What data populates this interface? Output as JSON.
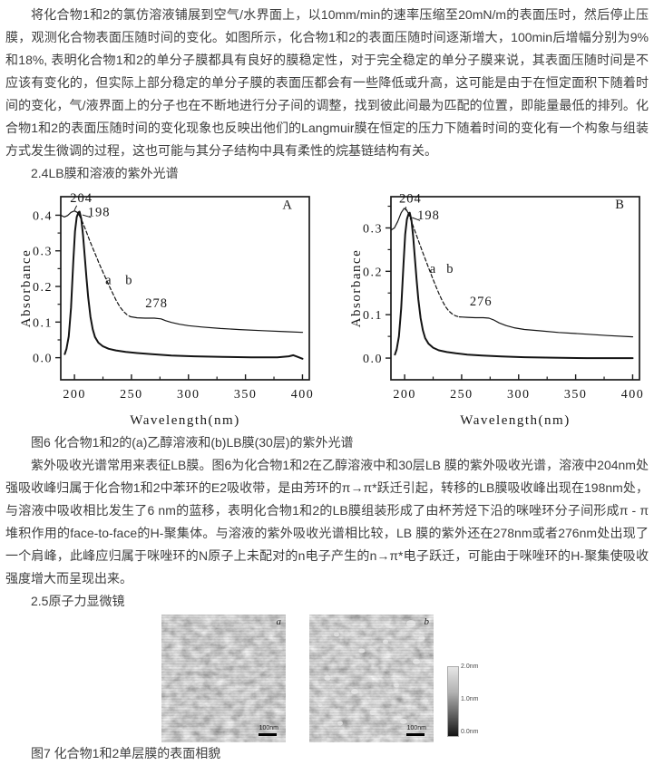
{
  "page": {
    "background": "#ffffff",
    "text_color": "#3d3d3d"
  },
  "paragraphs": {
    "p1": "将化合物1和2的氯仿溶液铺展到空气/水界面上，以10mm/min的速率压缩至20mN/m的表面压时，然后停止压膜，观测化合物表面压随时间的变化。如图所示，化合物1和2的表面压随时间逐渐增大，100min后增幅分别为9%和18%, 表明化合物1和2的单分子膜都具有良好的膜稳定性，对于完全稳定的单分子膜来说，其表面压随时间是不应该有变化的，但实际上部分稳定的单分子膜的表面压都会有一些降低或升高，这可能是由于在恒定面积下随着时间的变化，气/液界面上的分子也在不断地进行分子间的调整，找到彼此间最为匹配的位置，即能量最低的排列。化合物1和2的表面压随时间的变化现象也反映出他们的Langmuir膜在恒定的压力下随着时间的变化有一个构象与组装方式发生微调的过程，这也可能与其分子结构中具有柔性的烷基链结构有关。",
    "heading_24": "2.4LB膜和溶液的紫外光谱",
    "fig6_caption": "图6 化合物1和2的(a)乙醇溶液和(b)LB膜(30层)的紫外光谱",
    "p2": "紫外吸收光谱常用来表征LB膜。图6为化合物1和2在乙醇溶液中和30层LB 膜的紫外吸收光谱，溶液中204nm处强吸收峰归属于化合物1和2中苯环的E2吸收带，是由芳环的π→π*跃迁引起，转移的LB膜吸收峰出现在198nm处，与溶液中吸收相比发生了6 nm的蓝移，表明化合物1和2的LB膜组装形成了由杯芳烃下沿的咪唑环分子间形成π - π堆积作用的face-to-face的H-聚集体。与溶液的紫外吸收光谱相比较，LB 膜的紫外还在278nm或者276nm处出现了一个肩峰，此峰应归属于咪唑环的N原子上未配对的n电子产生的n→π*电子跃迁，可能由于咪唑环的H-聚集使吸收强度增大而呈现出来。",
    "heading_25": "2.5原子力显微镜",
    "fig7_caption": "图7 化合物1和2单层膜的表面相貌"
  },
  "chart_data": [
    {
      "type": "line",
      "corner_label": "A",
      "xlabel": "Wavelength(nm)",
      "ylabel": "Absorbance",
      "xlim": [
        188,
        406
      ],
      "ylim": [
        -0.062,
        0.452
      ],
      "xticks": [
        200,
        250,
        300,
        350,
        400
      ],
      "xticks_minor": [
        225,
        275,
        325,
        375
      ],
      "yticks": [
        0.0,
        0.1,
        0.2,
        0.3,
        0.4
      ],
      "yticks_minor": [
        0.05,
        0.15,
        0.25,
        0.35
      ],
      "annotations": [
        {
          "text": "204",
          "x": 206,
          "y": 0.437
        },
        {
          "text": "198",
          "x": 221.5,
          "y": 0.397
        },
        {
          "text": "278",
          "x": 272,
          "y": 0.141
        },
        {
          "text": "a",
          "x": 230,
          "y": 0.206
        },
        {
          "text": "b",
          "x": 248,
          "y": 0.206
        },
        {
          "text": "A",
          "x": 387,
          "y": 0.418
        }
      ],
      "leaders": [
        [
          202,
          0.427,
          200,
          0.414
        ],
        [
          214.5,
          0.394,
          207,
          0.401
        ]
      ],
      "series": [
        {
          "name": "a",
          "desc": "ethanol solution, peak 204 nm",
          "style": "thick",
          "points": [
            [
              191.5,
              0.01
            ],
            [
              193,
              0.025
            ],
            [
              195,
              0.06
            ],
            [
              197,
              0.14
            ],
            [
              199,
              0.27
            ],
            [
              200.5,
              0.355
            ],
            [
              202,
              0.395
            ],
            [
              203.5,
              0.408
            ],
            [
              204.5,
              0.41
            ],
            [
              206,
              0.39
            ],
            [
              207.5,
              0.345
            ],
            [
              209,
              0.285
            ],
            [
              210.5,
              0.225
            ],
            [
              212,
              0.17
            ],
            [
              214,
              0.115
            ],
            [
              216,
              0.08
            ],
            [
              218,
              0.058
            ],
            [
              221,
              0.042
            ],
            [
              225,
              0.032
            ],
            [
              230,
              0.025
            ],
            [
              237,
              0.02
            ],
            [
              245,
              0.016
            ],
            [
              255,
              0.013
            ],
            [
              268,
              0.01
            ],
            [
              285,
              0.006
            ],
            [
              305,
              0.004
            ],
            [
              330,
              0.002
            ],
            [
              355,
              0.001
            ],
            [
              378,
              0.001
            ],
            [
              388,
              0.004
            ],
            [
              392,
              0.007
            ],
            [
              396,
              0.002
            ],
            [
              400,
              -0.003
            ]
          ]
        },
        {
          "name": "b",
          "desc": "LB film rise, peak 198 nm",
          "style": "thin",
          "points": [
            [
              188,
              0.4
            ],
            [
              191,
              0.395
            ],
            [
              194,
              0.399
            ],
            [
              197,
              0.408
            ],
            [
              200,
              0.412
            ],
            [
              202.5,
              0.408
            ],
            [
              204,
              0.401
            ]
          ]
        },
        {
          "name": "b",
          "desc": "LB film descent",
          "style": "dashed",
          "points": [
            [
              204,
              0.401
            ],
            [
              207,
              0.381
            ],
            [
              210,
              0.357
            ],
            [
              213,
              0.332
            ],
            [
              216,
              0.308
            ],
            [
              219,
              0.285
            ],
            [
              222,
              0.262
            ],
            [
              225,
              0.24
            ],
            [
              228,
              0.219
            ],
            [
              231,
              0.198
            ],
            [
              234,
              0.178
            ],
            [
              237,
              0.158
            ],
            [
              240,
              0.142
            ],
            [
              243,
              0.13
            ],
            [
              246,
              0.121
            ],
            [
              249,
              0.115
            ]
          ]
        },
        {
          "name": "b",
          "desc": "LB film tail, shoulder 278 nm",
          "style": "thin",
          "points": [
            [
              249,
              0.115
            ],
            [
              255,
              0.112
            ],
            [
              262,
              0.111
            ],
            [
              270,
              0.111
            ],
            [
              276,
              0.109
            ],
            [
              280,
              0.104
            ],
            [
              285,
              0.099
            ],
            [
              292,
              0.094
            ],
            [
              300,
              0.09
            ],
            [
              312,
              0.086
            ],
            [
              328,
              0.082
            ],
            [
              345,
              0.079
            ],
            [
              365,
              0.076
            ],
            [
              385,
              0.073
            ],
            [
              400,
              0.071
            ]
          ]
        }
      ]
    },
    {
      "type": "line",
      "corner_label": "B",
      "xlabel": "Wavelength(nm)",
      "ylabel": "Absorbance",
      "xlim": [
        188,
        406
      ],
      "ylim": [
        -0.05,
        0.372
      ],
      "xticks": [
        200,
        250,
        300,
        350,
        400
      ],
      "xticks_minor": [
        225,
        275,
        325,
        375
      ],
      "yticks": [
        0.0,
        0.1,
        0.2,
        0.3
      ],
      "yticks_minor": [
        0.05,
        0.15,
        0.25,
        0.35
      ],
      "annotations": [
        {
          "text": "204",
          "x": 205,
          "y": 0.358
        },
        {
          "text": "198",
          "x": 221,
          "y": 0.32
        },
        {
          "text": "276",
          "x": 267,
          "y": 0.121
        },
        {
          "text": "a",
          "x": 225,
          "y": 0.196
        },
        {
          "text": "b",
          "x": 240,
          "y": 0.196
        },
        {
          "text": "B",
          "x": 389,
          "y": 0.345
        }
      ],
      "leaders": [
        [
          201,
          0.349,
          201,
          0.34
        ],
        [
          213.5,
          0.317,
          206.5,
          0.324
        ]
      ],
      "series": [
        {
          "name": "a",
          "desc": "ethanol solution, peak 204 nm",
          "style": "thick",
          "points": [
            [
              191.5,
              0.008
            ],
            [
              193,
              0.02
            ],
            [
              195,
              0.05
            ],
            [
              197,
              0.115
            ],
            [
              199,
              0.215
            ],
            [
              200.5,
              0.285
            ],
            [
              202,
              0.32
            ],
            [
              203.5,
              0.333
            ],
            [
              204.5,
              0.335
            ],
            [
              206,
              0.318
            ],
            [
              207.5,
              0.28
            ],
            [
              209,
              0.23
            ],
            [
              210.5,
              0.18
            ],
            [
              212,
              0.135
            ],
            [
              214,
              0.092
            ],
            [
              216,
              0.064
            ],
            [
              218,
              0.046
            ],
            [
              221,
              0.033
            ],
            [
              225,
              0.024
            ],
            [
              230,
              0.018
            ],
            [
              237,
              0.014
            ],
            [
              245,
              0.011
            ],
            [
              255,
              0.008
            ],
            [
              268,
              0.006
            ],
            [
              285,
              0.004
            ],
            [
              305,
              0.002
            ],
            [
              330,
              0.001
            ],
            [
              360,
              0
            ],
            [
              400,
              0
            ]
          ]
        },
        {
          "name": "b",
          "desc": "LB film rise, peak 198 nm",
          "style": "thin",
          "points": [
            [
              188,
              0.295
            ],
            [
              191,
              0.3
            ],
            [
              194,
              0.315
            ],
            [
              197,
              0.335
            ],
            [
              199.5,
              0.345
            ],
            [
              201.5,
              0.342
            ],
            [
              203,
              0.335
            ]
          ]
        },
        {
          "name": "b",
          "desc": "LB film descent",
          "style": "dashed",
          "points": [
            [
              203,
              0.335
            ],
            [
              206,
              0.315
            ],
            [
              209,
              0.293
            ],
            [
              212,
              0.271
            ],
            [
              215,
              0.25
            ],
            [
              218,
              0.229
            ],
            [
              221,
              0.208
            ],
            [
              224,
              0.188
            ],
            [
              227,
              0.168
            ],
            [
              230,
              0.149
            ],
            [
              233,
              0.132
            ],
            [
              236,
              0.118
            ],
            [
              239,
              0.108
            ],
            [
              242,
              0.101
            ],
            [
              245,
              0.097
            ],
            [
              248,
              0.095
            ]
          ]
        },
        {
          "name": "b",
          "desc": "LB film tail, shoulder 276 nm",
          "style": "thin",
          "points": [
            [
              248,
              0.095
            ],
            [
              255,
              0.094
            ],
            [
              262,
              0.093
            ],
            [
              269,
              0.093
            ],
            [
              274,
              0.092
            ],
            [
              278,
              0.088
            ],
            [
              283,
              0.081
            ],
            [
              289,
              0.075
            ],
            [
              296,
              0.07
            ],
            [
              305,
              0.066
            ],
            [
              318,
              0.063
            ],
            [
              335,
              0.059
            ],
            [
              355,
              0.056
            ],
            [
              378,
              0.052
            ],
            [
              400,
              0.049
            ]
          ]
        }
      ]
    }
  ],
  "figure7": {
    "images": [
      {
        "label": "a",
        "scalebar_text": "100nm"
      },
      {
        "label": "b",
        "scalebar_text": "100nm"
      }
    ],
    "colorbar_labels": {
      "top": "2.0nm",
      "middle": "1.0nm",
      "bottom": "0.0nm"
    }
  }
}
